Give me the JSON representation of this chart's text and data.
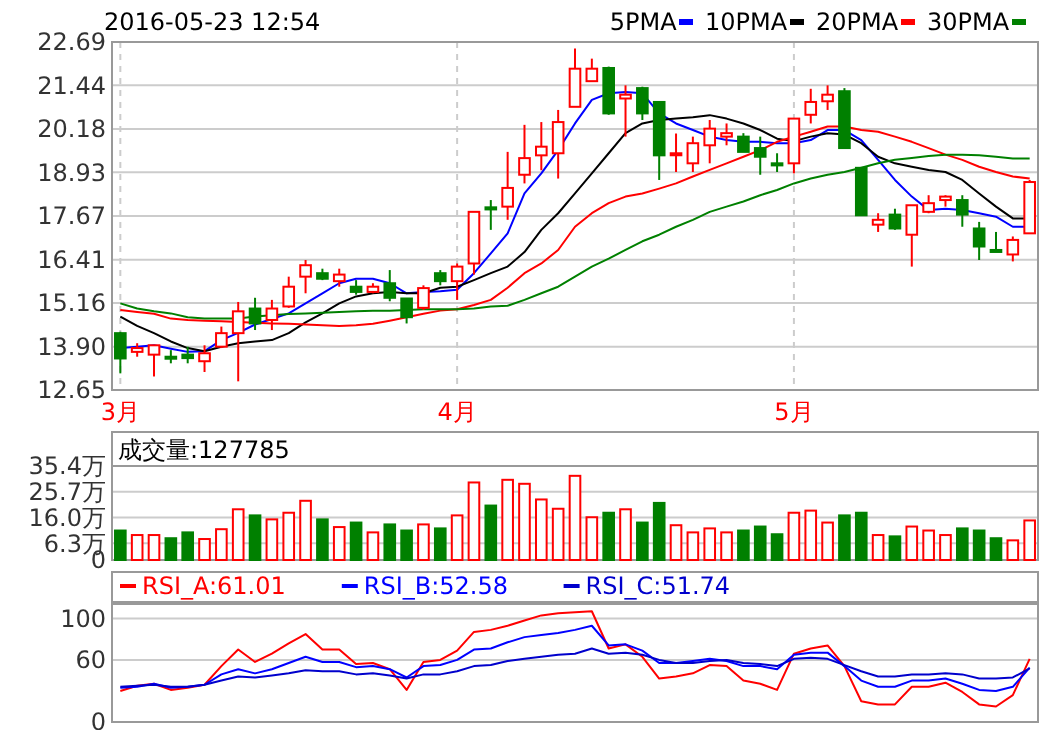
{
  "chart_data": [
    {
      "type": "candlestick",
      "title": "2016-05-23 12:54",
      "categories": [
        "3月",
        null,
        null,
        null,
        null,
        null,
        null,
        null,
        null,
        null,
        null,
        null,
        null,
        null,
        null,
        null,
        null,
        null,
        null,
        null,
        "4月",
        null,
        null,
        null,
        null,
        null,
        null,
        null,
        null,
        null,
        null,
        null,
        null,
        null,
        null,
        null,
        null,
        null,
        null,
        null,
        "5月",
        null,
        null,
        null,
        null,
        null,
        null,
        null,
        null,
        null,
        null,
        null,
        null,
        null,
        null
      ],
      "ohlc": [
        [
          14.29,
          14.33,
          13.13,
          13.56
        ],
        [
          13.75,
          14.0,
          13.61,
          13.86
        ],
        [
          13.67,
          13.94,
          13.04,
          13.94
        ],
        [
          13.61,
          13.8,
          13.42,
          13.56
        ],
        [
          13.67,
          13.9,
          13.42,
          13.57
        ],
        [
          13.48,
          13.94,
          13.17,
          13.71
        ],
        [
          13.9,
          14.48,
          13.86,
          14.29
        ],
        [
          14.29,
          15.19,
          12.9,
          14.92
        ],
        [
          15.0,
          15.31,
          14.38,
          14.57
        ],
        [
          14.67,
          15.25,
          14.38,
          15.0
        ],
        [
          15.06,
          15.92,
          15.02,
          15.63
        ],
        [
          15.92,
          16.4,
          15.44,
          16.25
        ],
        [
          16.02,
          16.15,
          15.82,
          15.86
        ],
        [
          15.79,
          16.15,
          15.63,
          15.98
        ],
        [
          15.63,
          15.82,
          15.4,
          15.48
        ],
        [
          15.48,
          15.73,
          15.44,
          15.63
        ],
        [
          15.73,
          16.11,
          15.21,
          15.31
        ],
        [
          15.29,
          15.29,
          14.57,
          14.75
        ],
        [
          15.02,
          15.67,
          14.96,
          15.59
        ],
        [
          16.02,
          16.11,
          15.67,
          15.79
        ],
        [
          15.79,
          16.3,
          15.25,
          16.21
        ],
        [
          16.3,
          17.79,
          15.98,
          17.79
        ],
        [
          17.92,
          18.13,
          17.27,
          17.86
        ],
        [
          17.94,
          19.52,
          17.56,
          18.48
        ],
        [
          18.86,
          20.3,
          18.61,
          19.34
        ],
        [
          19.42,
          20.38,
          18.99,
          19.67
        ],
        [
          19.48,
          20.73,
          18.75,
          20.38
        ],
        [
          20.82,
          22.5,
          20.82,
          21.92
        ],
        [
          21.56,
          22.21,
          21.56,
          21.92
        ],
        [
          21.94,
          21.98,
          20.59,
          20.63
        ],
        [
          21.06,
          21.44,
          19.96,
          21.17
        ],
        [
          21.36,
          21.4,
          20.44,
          20.63
        ],
        [
          20.96,
          20.96,
          18.71,
          19.42
        ],
        [
          19.46,
          20.05,
          18.94,
          19.48
        ],
        [
          19.19,
          19.96,
          18.94,
          19.77
        ],
        [
          19.71,
          20.44,
          19.19,
          20.19
        ],
        [
          19.96,
          20.34,
          19.71,
          20.06
        ],
        [
          19.96,
          20.06,
          19.52,
          19.52
        ],
        [
          19.63,
          19.96,
          18.86,
          19.38
        ],
        [
          19.19,
          19.48,
          18.94,
          19.13
        ],
        [
          19.19,
          20.48,
          18.9,
          20.48
        ],
        [
          20.59,
          21.34,
          20.34,
          20.96
        ],
        [
          20.98,
          21.44,
          20.73,
          21.17
        ],
        [
          21.27,
          21.36,
          19.63,
          19.63
        ],
        [
          19.06,
          19.06,
          17.69,
          17.69
        ],
        [
          17.42,
          17.75,
          17.21,
          17.56
        ],
        [
          17.71,
          17.88,
          17.27,
          17.31
        ],
        [
          17.13,
          17.98,
          16.21,
          17.98
        ],
        [
          17.79,
          18.27,
          17.75,
          18.04
        ],
        [
          18.13,
          18.27,
          17.94,
          18.23
        ],
        [
          18.13,
          18.27,
          17.36,
          17.71
        ],
        [
          17.31,
          17.5,
          16.4,
          16.79
        ],
        [
          16.69,
          17.21,
          16.63,
          16.65
        ],
        [
          16.56,
          17.08,
          16.36,
          16.98
        ],
        [
          17.17,
          18.71,
          17.17,
          18.65
        ]
      ],
      "series": [
        {
          "type": "line",
          "name": "5PMA",
          "color": "#0000ff",
          "values": [
            13.86,
            13.9,
            13.94,
            13.84,
            13.75,
            13.77,
            14.09,
            14.3,
            14.54,
            14.7,
            14.86,
            15.15,
            15.44,
            15.73,
            15.86,
            15.86,
            15.73,
            15.44,
            15.48,
            15.5,
            15.54,
            16.02,
            16.59,
            17.17,
            18.32,
            18.9,
            19.57,
            20.34,
            21.02,
            21.21,
            21.25,
            21.21,
            20.63,
            20.34,
            20.15,
            19.96,
            19.86,
            19.81,
            19.81,
            19.77,
            19.77,
            19.86,
            20.15,
            20.15,
            19.86,
            19.29,
            18.71,
            18.23,
            17.84,
            17.88,
            17.84,
            17.75,
            17.65,
            17.36,
            17.36
          ]
        },
        {
          "type": "line",
          "name": "10PMA",
          "color": "#000000",
          "values": [
            14.77,
            14.5,
            14.29,
            14.05,
            13.86,
            13.77,
            13.9,
            14.0,
            14.05,
            14.09,
            14.29,
            14.6,
            14.86,
            15.15,
            15.35,
            15.44,
            15.48,
            15.44,
            15.44,
            15.6,
            15.63,
            15.82,
            16.02,
            16.21,
            16.63,
            17.27,
            17.75,
            18.32,
            18.9,
            19.48,
            20.06,
            20.34,
            20.44,
            20.48,
            20.52,
            20.58,
            20.48,
            20.34,
            20.15,
            19.9,
            19.83,
            19.96,
            20.06,
            20.02,
            19.77,
            19.38,
            19.19,
            19.09,
            19.0,
            18.94,
            18.71,
            18.32,
            17.94,
            17.6,
            17.6
          ]
        },
        {
          "type": "line",
          "name": "20PMA",
          "color": "#ff0000",
          "values": [
            14.96,
            14.9,
            14.85,
            14.71,
            14.67,
            14.65,
            14.63,
            14.61,
            14.59,
            14.57,
            14.56,
            14.54,
            14.52,
            14.5,
            14.52,
            14.56,
            14.65,
            14.75,
            14.85,
            14.94,
            14.98,
            15.1,
            15.25,
            15.6,
            16.02,
            16.3,
            16.69,
            17.36,
            17.75,
            18.04,
            18.23,
            18.32,
            18.46,
            18.61,
            18.81,
            19.0,
            19.19,
            19.38,
            19.57,
            19.81,
            19.96,
            20.1,
            20.25,
            20.25,
            20.15,
            20.1,
            19.96,
            19.81,
            19.63,
            19.44,
            19.29,
            19.09,
            18.94,
            18.81,
            18.75
          ]
        },
        {
          "type": "line",
          "name": "30PMA",
          "color": "#008000",
          "values": [
            15.15,
            15.0,
            14.92,
            14.86,
            14.75,
            14.71,
            14.71,
            14.71,
            14.77,
            14.81,
            14.84,
            14.86,
            14.88,
            14.9,
            14.92,
            14.94,
            14.94,
            14.96,
            14.98,
            14.98,
            14.98,
            15.0,
            15.06,
            15.08,
            15.25,
            15.44,
            15.63,
            15.92,
            16.21,
            16.44,
            16.69,
            16.94,
            17.13,
            17.36,
            17.56,
            17.79,
            17.94,
            18.09,
            18.27,
            18.42,
            18.61,
            18.75,
            18.86,
            18.94,
            19.06,
            19.19,
            19.29,
            19.34,
            19.4,
            19.44,
            19.44,
            19.42,
            19.38,
            19.33,
            19.33
          ]
        }
      ],
      "ylim": [
        12.65,
        22.69
      ],
      "yticks": [
        12.65,
        {
          "value": 13.9,
          "label": "13.90"
        },
        15.16,
        16.41,
        17.67,
        18.93,
        20.18,
        21.44,
        22.69
      ],
      "grid": true,
      "legend": "top right"
    },
    {
      "type": "bar",
      "title": "成交量:127785",
      "categories": [
        null,
        null,
        null,
        null,
        null,
        null,
        null,
        null,
        null,
        null,
        null,
        null,
        null,
        null,
        null,
        null,
        null,
        null,
        null,
        null,
        null,
        null,
        null,
        null,
        null,
        null,
        null,
        null,
        null,
        null,
        null,
        null,
        null,
        null,
        null,
        null,
        null,
        null,
        null,
        null,
        null,
        null,
        null,
        null,
        null,
        null,
        null,
        null,
        null,
        null,
        null,
        null,
        null,
        null,
        null
      ],
      "values": [
        11.1,
        9.4,
        9.4,
        8.2,
        10.4,
        7.9,
        11.6,
        19.1,
        16.8,
        15.3,
        17.8,
        22.3,
        15.3,
        12.4,
        14.1,
        10.4,
        13.4,
        11.1,
        13.4,
        11.9,
        16.8,
        29.2,
        20.5,
        30.2,
        28.7,
        22.8,
        19.3,
        31.7,
        16.1,
        17.8,
        19.1,
        14.1,
        21.5,
        13.1,
        10.4,
        11.9,
        10.4,
        11.1,
        12.6,
        9.7,
        17.8,
        18.6,
        14.1,
        16.8,
        17.8,
        9.4,
        8.9,
        12.6,
        11.1,
        9.4,
        11.9,
        11.1,
        8.2,
        7.4,
        14.9
      ],
      "colors": [
        "#008000",
        "#ff0000",
        "#ff0000",
        "#008000",
        "#008000",
        "#ff0000",
        "#ff0000",
        "#ff0000",
        "#008000",
        "#ff0000",
        "#ff0000",
        "#ff0000",
        "#008000",
        "#ff0000",
        "#008000",
        "#ff0000",
        "#008000",
        "#008000",
        "#ff0000",
        "#008000",
        "#ff0000",
        "#ff0000",
        "#008000",
        "#ff0000",
        "#ff0000",
        "#ff0000",
        "#ff0000",
        "#ff0000",
        "#ff0000",
        "#008000",
        "#ff0000",
        "#008000",
        "#008000",
        "#ff0000",
        "#ff0000",
        "#ff0000",
        "#ff0000",
        "#008000",
        "#008000",
        "#008000",
        "#ff0000",
        "#ff0000",
        "#ff0000",
        "#008000",
        "#008000",
        "#ff0000",
        "#008000",
        "#ff0000",
        "#ff0000",
        "#ff0000",
        "#008000",
        "#008000",
        "#008000",
        "#ff0000",
        "#ff0000"
      ],
      "ylim": [
        0,
        35.4
      ],
      "yticks": [
        0,
        {
          "value": 6.3,
          "label": "6.3万"
        },
        {
          "value": 16.0,
          "label": "16.0万"
        },
        {
          "value": 25.7,
          "label": "25.7万"
        },
        {
          "value": 35.4,
          "label": "35.4万"
        }
      ],
      "grid": "y",
      "tick_labels": "y"
    },
    {
      "type": "line",
      "categories": [
        null,
        null,
        null,
        null,
        null,
        null,
        null,
        null,
        null,
        null,
        null,
        null,
        null,
        null,
        null,
        null,
        null,
        null,
        null,
        null,
        null,
        null,
        null,
        null,
        null,
        null,
        null,
        null,
        null,
        null,
        null,
        null,
        null,
        null,
        null,
        null,
        null,
        null,
        null,
        null,
        null,
        null,
        null,
        null,
        null,
        null,
        null,
        null,
        null,
        null,
        null,
        null,
        null,
        null,
        null
      ],
      "series": [
        {
          "name": "RSI_A:61.01",
          "color": "#ff0000",
          "values": [
            30,
            35,
            37,
            31,
            33,
            36,
            54,
            70,
            58,
            66,
            76,
            85,
            70,
            70,
            56,
            57,
            51,
            31,
            58,
            60,
            69,
            87,
            89,
            93,
            98,
            103,
            105,
            106,
            107,
            71,
            75,
            63,
            42,
            44,
            47,
            55,
            54,
            40,
            37,
            31,
            66,
            71,
            74,
            54,
            20,
            17,
            17,
            34,
            34,
            38,
            29,
            17,
            15,
            26,
            61.01
          ]
        },
        {
          "name": "RSI_B:52.58",
          "color": "#0000ff",
          "values": [
            33,
            34,
            37,
            33,
            34,
            36,
            46,
            51,
            47,
            51,
            57,
            63,
            58,
            58,
            53,
            54,
            51,
            43,
            54,
            55,
            60,
            70,
            71,
            77,
            82,
            84,
            86,
            89,
            93,
            74,
            75,
            69,
            57,
            57,
            59,
            61,
            59,
            54,
            54,
            51,
            65,
            67,
            67,
            54,
            40,
            34,
            34,
            40,
            40,
            42,
            37,
            31,
            30,
            34,
            52.58
          ]
        },
        {
          "name": "RSI_C:51.74",
          "color": "#0000cc",
          "values": [
            34,
            35,
            36,
            34,
            34,
            36,
            40,
            44,
            43,
            45,
            47,
            50,
            49,
            49,
            46,
            47,
            45,
            42,
            46,
            46,
            49,
            54,
            55,
            59,
            61,
            63,
            65,
            66,
            71,
            66,
            67,
            65,
            60,
            57,
            57,
            59,
            60,
            57,
            56,
            54,
            61,
            62,
            61,
            55,
            49,
            44,
            44,
            46,
            46,
            47,
            46,
            42,
            42,
            43,
            51.74
          ]
        }
      ],
      "ylim": [
        0,
        114
      ],
      "yticks": [
        0,
        60,
        100
      ],
      "grid": "y",
      "legend": "top",
      "tick_labels": "y"
    }
  ]
}
